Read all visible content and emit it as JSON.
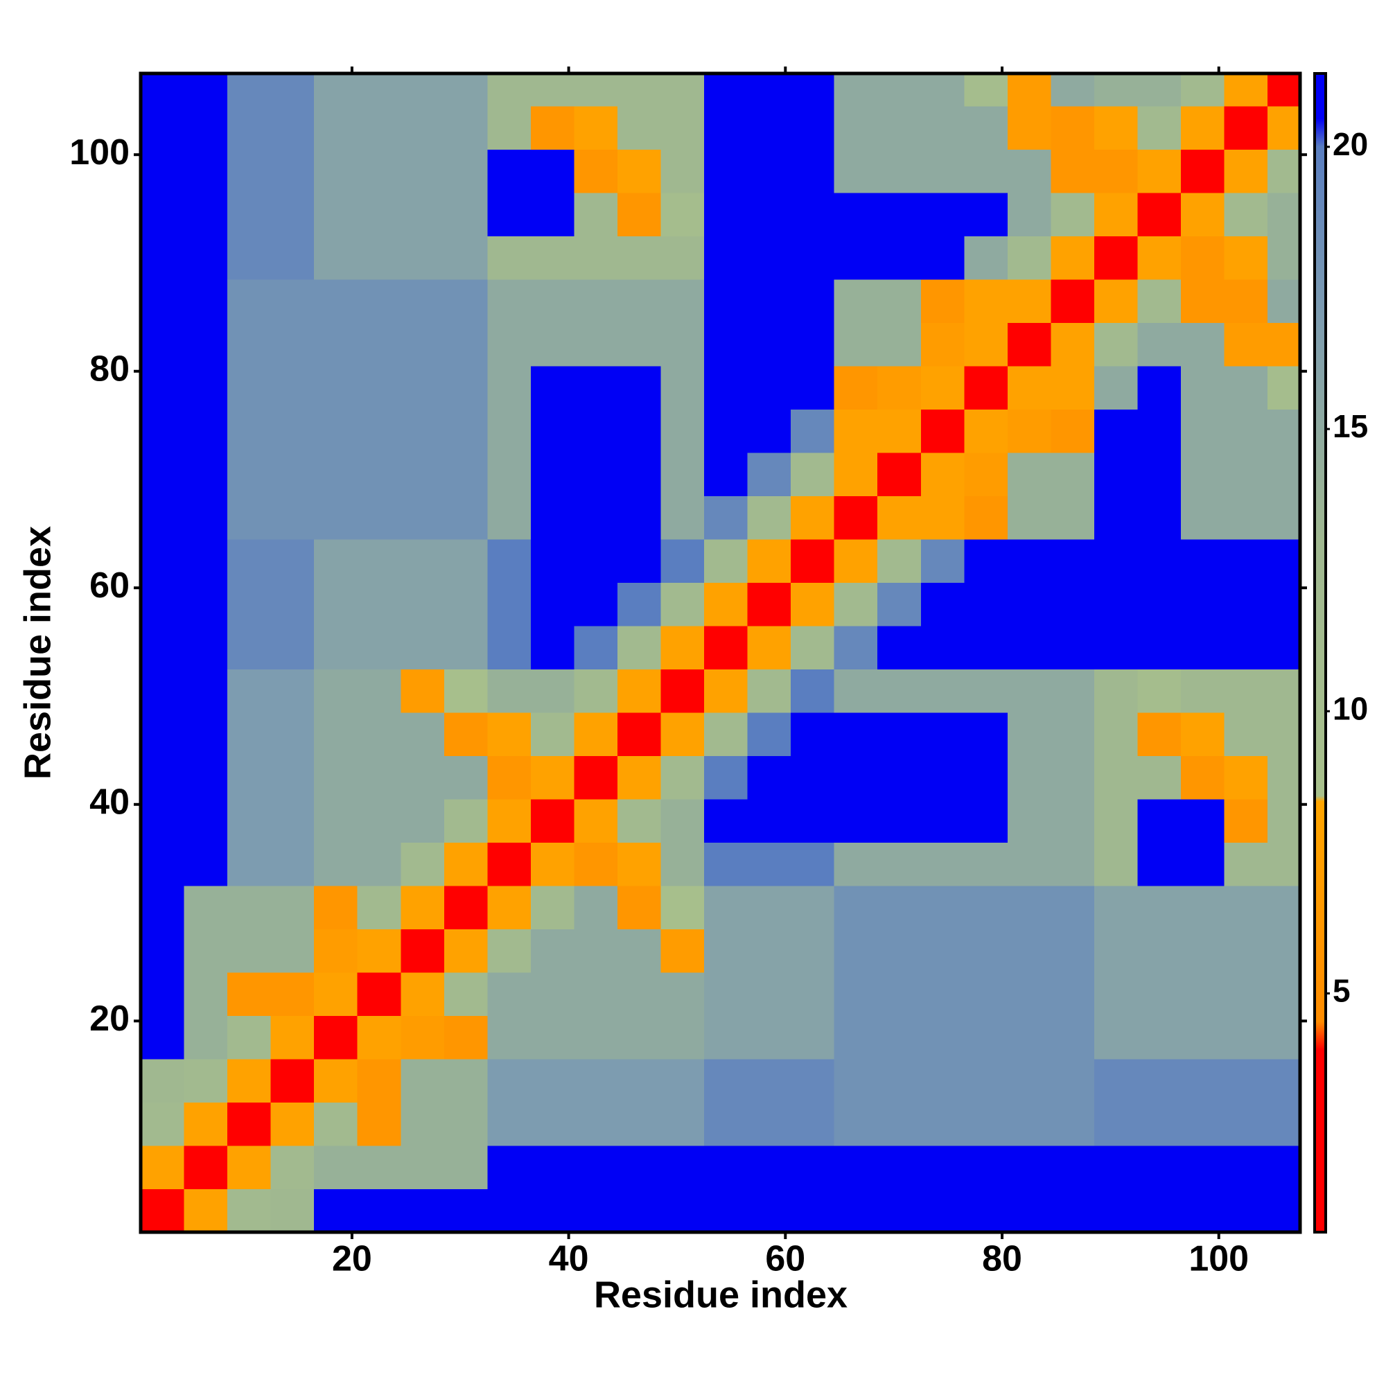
{
  "chart_data": {
    "type": "heatmap",
    "xlabel": "Residue index",
    "ylabel": "Residue index",
    "xlim": [
      0.5,
      107.5
    ],
    "ylim": [
      0.5,
      107.5
    ],
    "xticks": [
      20,
      40,
      60,
      80,
      100
    ],
    "yticks": [
      20,
      40,
      60,
      80,
      100
    ],
    "xbins": [
      0.5,
      4.5,
      8.5,
      12.5,
      16.5,
      20.5,
      24.5,
      28.5,
      32.5,
      36.5,
      40.5,
      44.5,
      48.5,
      52.5,
      56.5,
      60.5,
      64.5,
      68.5,
      72.5,
      76.5,
      80.5,
      84.5,
      88.5,
      92.5,
      96.5,
      100.5,
      104.5,
      107.5
    ],
    "ybins": [
      0.5,
      4.5,
      8.5,
      12.5,
      16.5,
      20.5,
      24.5,
      28.5,
      32.5,
      36.5,
      40.5,
      44.5,
      48.5,
      52.5,
      56.5,
      60.5,
      64.5,
      68.5,
      72.5,
      76.5,
      80.5,
      84.5,
      88.5,
      92.5,
      96.5,
      100.5,
      104.5,
      107.5
    ],
    "z": [
      [
        3,
        8,
        12,
        13,
        25,
        25,
        25,
        25,
        25,
        25,
        25,
        25,
        25,
        25,
        25,
        25,
        25,
        25,
        25,
        25,
        25,
        25,
        25,
        25,
        25,
        25,
        25
      ],
      [
        8,
        3,
        8,
        12,
        14,
        14,
        14,
        14,
        23,
        23,
        23,
        23,
        23,
        23,
        23,
        23,
        23,
        23,
        23,
        23,
        23,
        23,
        23,
        23,
        23,
        23,
        23
      ],
      [
        12,
        8,
        3,
        8,
        12,
        6,
        14,
        14,
        17,
        17,
        17,
        17,
        17,
        19,
        19,
        19,
        18,
        18,
        18,
        18,
        18,
        18,
        19,
        19,
        19,
        19,
        19
      ],
      [
        13,
        12,
        8,
        3,
        8,
        6,
        14,
        14,
        17,
        17,
        17,
        17,
        17,
        19,
        19,
        19,
        18,
        18,
        18,
        18,
        18,
        18,
        19,
        19,
        19,
        19,
        19
      ],
      [
        25,
        14,
        12,
        8,
        3,
        8,
        7,
        6,
        15,
        15,
        15,
        15,
        15,
        16,
        16,
        16,
        18,
        18,
        18,
        18,
        18,
        18,
        16,
        16,
        16,
        16,
        16
      ],
      [
        25,
        14,
        6,
        6,
        8,
        3,
        8,
        12,
        15,
        15,
        15,
        15,
        15,
        16,
        16,
        16,
        18,
        18,
        18,
        18,
        18,
        18,
        16,
        16,
        16,
        16,
        16
      ],
      [
        25,
        14,
        14,
        14,
        7,
        8,
        3,
        8,
        12,
        15,
        15,
        15,
        7,
        16,
        16,
        16,
        18,
        18,
        18,
        18,
        18,
        18,
        16,
        16,
        16,
        16,
        16
      ],
      [
        25,
        14,
        14,
        14,
        6,
        12,
        8,
        3,
        8,
        12,
        15,
        6,
        9,
        16,
        16,
        16,
        18,
        18,
        18,
        18,
        18,
        18,
        16,
        16,
        16,
        16,
        16
      ],
      [
        25,
        23,
        17,
        17,
        15,
        15,
        12,
        8,
        3,
        8,
        6,
        8,
        14,
        20,
        20,
        20,
        15,
        15,
        15,
        15,
        15,
        15,
        13,
        24,
        24,
        13,
        13
      ],
      [
        25,
        23,
        17,
        17,
        15,
        15,
        15,
        12,
        8,
        3,
        8,
        12,
        14,
        23,
        23,
        23,
        23,
        23,
        23,
        23,
        15,
        15,
        13,
        24,
        24,
        6,
        13
      ],
      [
        25,
        23,
        17,
        17,
        15,
        15,
        15,
        15,
        6,
        8,
        3,
        8,
        12,
        20,
        23,
        23,
        23,
        23,
        23,
        23,
        15,
        15,
        13,
        13,
        6,
        8,
        13
      ],
      [
        25,
        23,
        17,
        17,
        15,
        15,
        15,
        6,
        8,
        12,
        8,
        3,
        8,
        12,
        20,
        23,
        23,
        23,
        23,
        23,
        15,
        15,
        13,
        6,
        8,
        13,
        13
      ],
      [
        25,
        23,
        17,
        17,
        15,
        15,
        7,
        9,
        14,
        14,
        12,
        8,
        3,
        8,
        12,
        20,
        15,
        15,
        15,
        15,
        15,
        15,
        13,
        10,
        13,
        13,
        13
      ],
      [
        25,
        23,
        19,
        19,
        16,
        16,
        16,
        16,
        20,
        23,
        20,
        12,
        8,
        3,
        8,
        12,
        19,
        23,
        23,
        23,
        23,
        23,
        23,
        23,
        22,
        22,
        22
      ],
      [
        25,
        23,
        19,
        19,
        16,
        16,
        16,
        16,
        20,
        23,
        23,
        20,
        12,
        8,
        3,
        8,
        12,
        19,
        23,
        23,
        23,
        23,
        23,
        23,
        22,
        22,
        22
      ],
      [
        25,
        23,
        19,
        19,
        16,
        16,
        16,
        16,
        20,
        23,
        23,
        23,
        20,
        12,
        8,
        3,
        8,
        12,
        19,
        23,
        23,
        23,
        23,
        23,
        22,
        22,
        22
      ],
      [
        25,
        23,
        18,
        18,
        18,
        18,
        18,
        18,
        15,
        23,
        23,
        23,
        15,
        19,
        12,
        8,
        3,
        8,
        8,
        6,
        14,
        14,
        22,
        22,
        15,
        15,
        15
      ],
      [
        25,
        23,
        18,
        18,
        18,
        18,
        18,
        18,
        15,
        23,
        23,
        23,
        15,
        23,
        19,
        12,
        8,
        3,
        8,
        7,
        14,
        14,
        22,
        22,
        15,
        15,
        15
      ],
      [
        25,
        23,
        18,
        18,
        18,
        18,
        18,
        18,
        15,
        23,
        23,
        23,
        15,
        23,
        23,
        19,
        8,
        8,
        3,
        8,
        7,
        6,
        22,
        22,
        15,
        15,
        15
      ],
      [
        25,
        23,
        18,
        18,
        18,
        18,
        18,
        18,
        15,
        23,
        23,
        23,
        15,
        23,
        23,
        23,
        6,
        7,
        8,
        3,
        8,
        8,
        15,
        22,
        15,
        15,
        10
      ],
      [
        25,
        23,
        18,
        18,
        18,
        18,
        18,
        18,
        15,
        15,
        15,
        15,
        15,
        23,
        23,
        23,
        14,
        14,
        7,
        8,
        3,
        8,
        12,
        15,
        15,
        7,
        7
      ],
      [
        25,
        23,
        18,
        18,
        18,
        18,
        18,
        18,
        15,
        15,
        15,
        15,
        15,
        23,
        23,
        23,
        14,
        14,
        6,
        8,
        8,
        3,
        8,
        12,
        6,
        6,
        15
      ],
      [
        25,
        23,
        19,
        19,
        16,
        16,
        16,
        16,
        13,
        13,
        13,
        13,
        13,
        23,
        23,
        23,
        22,
        22,
        22,
        15,
        12,
        8,
        3,
        8,
        6,
        8,
        14
      ],
      [
        25,
        23,
        19,
        19,
        16,
        16,
        16,
        16,
        24,
        24,
        13,
        6,
        10,
        23,
        23,
        23,
        22,
        22,
        22,
        22,
        15,
        12,
        8,
        3,
        8,
        12,
        14
      ],
      [
        25,
        23,
        19,
        19,
        16,
        16,
        16,
        16,
        24,
        24,
        6,
        8,
        13,
        22,
        22,
        22,
        15,
        15,
        15,
        15,
        15,
        6,
        6,
        8,
        3,
        8,
        12
      ],
      [
        25,
        23,
        19,
        19,
        16,
        16,
        16,
        16,
        13,
        6,
        8,
        13,
        13,
        22,
        22,
        22,
        15,
        15,
        15,
        15,
        7,
        6,
        8,
        12,
        8,
        3,
        8
      ],
      [
        25,
        23,
        19,
        19,
        16,
        16,
        16,
        16,
        13,
        13,
        13,
        13,
        13,
        22,
        22,
        22,
        15,
        15,
        15,
        10,
        7,
        15,
        14,
        14,
        12,
        8,
        3
      ]
    ],
    "clim": [
      0.77,
      21.3
    ],
    "colorbar_ticks": [
      5,
      10,
      15,
      20
    ],
    "colorscale": [
      [
        0.77,
        "#ff0000"
      ],
      [
        4,
        "#ff0000"
      ],
      [
        4.5,
        "#ff8c00"
      ],
      [
        8.4,
        "#ffa500"
      ],
      [
        8.5,
        "#a8c08c"
      ],
      [
        13,
        "#a0b890"
      ],
      [
        17,
        "#7d9cb0"
      ],
      [
        20,
        "#5a7ec0"
      ],
      [
        20.5,
        "#0000f5"
      ],
      [
        21.3,
        "#0000f5"
      ]
    ],
    "grid": false
  }
}
